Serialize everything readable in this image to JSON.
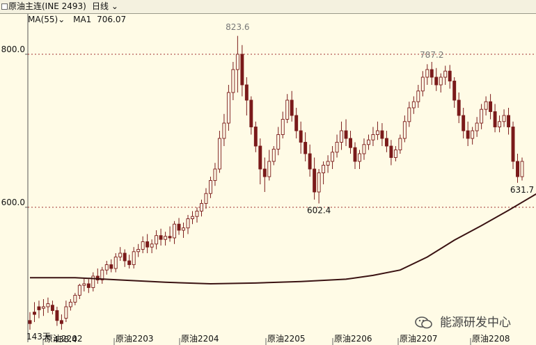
{
  "header": {
    "title": "原油主连(INE 2493)",
    "period": "日线"
  },
  "indicator": {
    "ma_name": "MA(55)",
    "ma1_label": "MA1",
    "ma1_value": "706.07"
  },
  "footer": {
    "days_label": "143天"
  },
  "watermark": {
    "text": "能源研发中心"
  },
  "colors": {
    "background": "#fffbe6",
    "candle": "#7a1a1a",
    "ma_line": "#3a1212",
    "grid_dotted": "#a03030"
  },
  "chart_data": {
    "type": "candlestick",
    "y_ticks": [
      "800.0",
      "600.0"
    ],
    "ylim": [
      420,
      850
    ],
    "x_tick_labels": [
      "原油2202",
      "原油2203",
      "原油2204",
      "原油2205",
      "原油2206",
      "原油2207",
      "原油2208"
    ],
    "annotations": [
      {
        "label": "823.6",
        "value": 823.6
      },
      {
        "label": "787.2",
        "value": 787.2
      },
      {
        "label": "602.4",
        "value": 602.4
      },
      {
        "label": "631.7",
        "value": 631.7
      },
      {
        "label": "438.4",
        "value": 438.4
      }
    ],
    "series": [
      {
        "name": "MA(55)",
        "values": [
          {
            "i": 0,
            "v": 508
          },
          {
            "i": 10,
            "v": 508
          },
          {
            "i": 20,
            "v": 505
          },
          {
            "i": 30,
            "v": 502
          },
          {
            "i": 40,
            "v": 500
          },
          {
            "i": 50,
            "v": 501
          },
          {
            "i": 60,
            "v": 503
          },
          {
            "i": 70,
            "v": 506
          },
          {
            "i": 76,
            "v": 511
          },
          {
            "i": 82,
            "v": 518
          },
          {
            "i": 88,
            "v": 535
          },
          {
            "i": 94,
            "v": 557
          },
          {
            "i": 100,
            "v": 576
          },
          {
            "i": 106,
            "v": 596
          },
          {
            "i": 112,
            "v": 617
          },
          {
            "i": 118,
            "v": 632
          },
          {
            "i": 124,
            "v": 646
          },
          {
            "i": 130,
            "v": 660
          },
          {
            "i": 136,
            "v": 670
          },
          {
            "i": 142,
            "v": 681
          },
          {
            "i": 148,
            "v": 690
          },
          {
            "i": 152,
            "v": 690
          },
          {
            "i": 156,
            "v": 688
          },
          {
            "i": 160,
            "v": 694
          },
          {
            "i": 166,
            "v": 704
          },
          {
            "i": 172,
            "v": 706
          },
          {
            "i": 178,
            "v": 706
          },
          {
            "i": 186,
            "v": 708
          },
          {
            "i": 192,
            "v": 707
          }
        ]
      }
    ],
    "candles": [
      [
        452,
        463,
        448,
        440
      ],
      [
        463,
        476,
        460,
        450
      ],
      [
        470,
        478,
        466,
        455
      ],
      [
        468,
        480,
        470,
        458
      ],
      [
        470,
        482,
        474,
        462
      ],
      [
        472,
        478,
        465,
        460
      ],
      [
        465,
        470,
        452,
        445
      ],
      [
        452,
        460,
        448,
        440
      ],
      [
        455,
        478,
        470,
        450
      ],
      [
        470,
        480,
        476,
        465
      ],
      [
        476,
        488,
        485,
        472
      ],
      [
        485,
        500,
        498,
        480
      ],
      [
        498,
        508,
        500,
        490
      ],
      [
        500,
        506,
        495,
        488
      ],
      [
        495,
        515,
        510,
        490
      ],
      [
        510,
        520,
        505,
        500
      ],
      [
        505,
        522,
        518,
        500
      ],
      [
        518,
        530,
        525,
        512
      ],
      [
        525,
        532,
        520,
        515
      ],
      [
        520,
        540,
        535,
        515
      ],
      [
        535,
        548,
        540,
        530
      ],
      [
        540,
        545,
        530,
        522
      ],
      [
        530,
        538,
        525,
        520
      ],
      [
        525,
        548,
        542,
        520
      ],
      [
        542,
        552,
        545,
        535
      ],
      [
        545,
        562,
        555,
        540
      ],
      [
        555,
        565,
        548,
        540
      ],
      [
        548,
        558,
        552,
        540
      ],
      [
        552,
        570,
        563,
        545
      ],
      [
        563,
        572,
        558,
        550
      ],
      [
        558,
        568,
        562,
        550
      ],
      [
        562,
        575,
        560,
        555
      ],
      [
        560,
        582,
        578,
        552
      ],
      [
        578,
        586,
        570,
        564
      ],
      [
        570,
        580,
        573,
        560
      ],
      [
        573,
        590,
        585,
        565
      ],
      [
        585,
        595,
        588,
        578
      ],
      [
        588,
        600,
        595,
        580
      ],
      [
        595,
        610,
        605,
        588
      ],
      [
        605,
        625,
        618,
        598
      ],
      [
        618,
        640,
        635,
        612
      ],
      [
        635,
        658,
        650,
        628
      ],
      [
        650,
        700,
        690,
        645
      ],
      [
        690,
        722,
        710,
        680
      ],
      [
        710,
        760,
        750,
        700
      ],
      [
        750,
        790,
        780,
        740
      ],
      [
        780,
        824,
        800,
        750
      ],
      [
        800,
        812,
        760,
        745
      ],
      [
        760,
        770,
        740,
        720
      ],
      [
        740,
        745,
        705,
        695
      ],
      [
        705,
        712,
        680,
        672
      ],
      [
        680,
        690,
        650,
        630
      ],
      [
        650,
        665,
        640,
        620
      ],
      [
        640,
        675,
        660,
        635
      ],
      [
        660,
        680,
        676,
        655
      ],
      [
        676,
        705,
        695,
        668
      ],
      [
        695,
        725,
        715,
        690
      ],
      [
        715,
        748,
        740,
        710
      ],
      [
        740,
        752,
        720,
        712
      ],
      [
        720,
        730,
        700,
        690
      ],
      [
        700,
        712,
        685,
        670
      ],
      [
        685,
        698,
        670,
        660
      ],
      [
        670,
        682,
        650,
        640
      ],
      [
        650,
        665,
        620,
        610
      ],
      [
        620,
        650,
        645,
        605
      ],
      [
        645,
        660,
        655,
        630
      ],
      [
        655,
        668,
        660,
        645
      ],
      [
        660,
        680,
        672,
        650
      ],
      [
        672,
        695,
        685,
        665
      ],
      [
        685,
        712,
        700,
        675
      ],
      [
        700,
        715,
        690,
        680
      ],
      [
        690,
        700,
        678,
        670
      ],
      [
        678,
        685,
        660,
        650
      ],
      [
        660,
        675,
        670,
        650
      ],
      [
        670,
        690,
        682,
        662
      ],
      [
        682,
        695,
        688,
        675
      ],
      [
        688,
        705,
        695,
        680
      ],
      [
        695,
        712,
        700,
        688
      ],
      [
        700,
        710,
        690,
        680
      ],
      [
        690,
        700,
        680,
        672
      ],
      [
        680,
        688,
        665,
        655
      ],
      [
        665,
        680,
        675,
        660
      ],
      [
        675,
        695,
        690,
        670
      ],
      [
        690,
        720,
        712,
        685
      ],
      [
        712,
        738,
        730,
        705
      ],
      [
        730,
        745,
        738,
        722
      ],
      [
        738,
        760,
        752,
        730
      ],
      [
        752,
        778,
        770,
        745
      ],
      [
        770,
        787,
        780,
        760
      ],
      [
        780,
        790,
        770,
        760
      ],
      [
        770,
        782,
        760,
        752
      ],
      [
        760,
        775,
        770,
        750
      ],
      [
        770,
        785,
        778,
        760
      ],
      [
        778,
        786,
        765,
        755
      ],
      [
        765,
        770,
        740,
        730
      ],
      [
        740,
        750,
        720,
        710
      ],
      [
        720,
        730,
        700,
        690
      ],
      [
        700,
        712,
        690,
        680
      ],
      [
        690,
        705,
        700,
        682
      ],
      [
        700,
        718,
        710,
        692
      ],
      [
        710,
        735,
        728,
        702
      ],
      [
        728,
        745,
        738,
        720
      ],
      [
        738,
        748,
        725,
        715
      ],
      [
        725,
        735,
        705,
        698
      ],
      [
        705,
        720,
        712,
        698
      ],
      [
        712,
        728,
        720,
        705
      ],
      [
        720,
        730,
        705,
        695
      ],
      [
        705,
        712,
        660,
        650
      ],
      [
        660,
        670,
        640,
        632
      ],
      [
        640,
        665,
        660,
        635
      ]
    ]
  }
}
